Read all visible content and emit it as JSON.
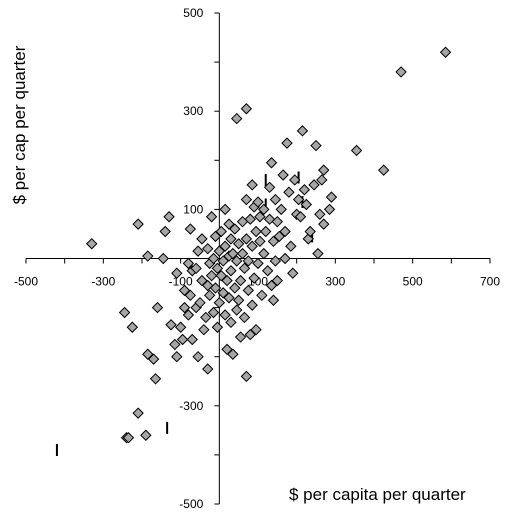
{
  "chart_data": {
    "type": "scatter",
    "title": "",
    "xlabel": "$ per capita per quarter",
    "ylabel": "$ per cap per quarter",
    "xlim": [
      -500,
      700
    ],
    "ylim": [
      -500,
      500
    ],
    "xticks": [
      -500,
      -300,
      -100,
      100,
      300,
      500,
      700
    ],
    "yticks": [
      -500,
      -300,
      100,
      300,
      500
    ],
    "grid": false,
    "legend": "none",
    "marker_color": "#a6a6a6",
    "marker_edge_color": "#000000",
    "points": [
      [
        -330,
        30
      ],
      [
        -245,
        -110
      ],
      [
        -240,
        -365
      ],
      [
        -235,
        -365
      ],
      [
        -225,
        -140
      ],
      [
        -210,
        70
      ],
      [
        -210,
        -315
      ],
      [
        -190,
        -360
      ],
      [
        -185,
        -195
      ],
      [
        -185,
        5
      ],
      [
        -170,
        -205
      ],
      [
        -165,
        -245
      ],
      [
        -160,
        -100
      ],
      [
        -145,
        0
      ],
      [
        -140,
        55
      ],
      [
        -130,
        85
      ],
      [
        -125,
        -135
      ],
      [
        -115,
        -175
      ],
      [
        -110,
        -200
      ],
      [
        -110,
        -30
      ],
      [
        -100,
        -140
      ],
      [
        -95,
        -165
      ],
      [
        -90,
        -65
      ],
      [
        -90,
        -100
      ],
      [
        -80,
        -10
      ],
      [
        -80,
        -115
      ],
      [
        -75,
        60
      ],
      [
        -75,
        -75
      ],
      [
        -70,
        -25
      ],
      [
        -70,
        -165
      ],
      [
        -60,
        -100
      ],
      [
        -60,
        -20
      ],
      [
        -55,
        15
      ],
      [
        -55,
        -200
      ],
      [
        -50,
        -90
      ],
      [
        -45,
        40
      ],
      [
        -45,
        -45
      ],
      [
        -40,
        -145
      ],
      [
        -35,
        -120
      ],
      [
        -30,
        -55
      ],
      [
        -30,
        20
      ],
      [
        -30,
        -225
      ],
      [
        -25,
        -10
      ],
      [
        -25,
        -75
      ],
      [
        -20,
        85
      ],
      [
        -20,
        -35
      ],
      [
        -15,
        0
      ],
      [
        -15,
        -110
      ],
      [
        -10,
        45
      ],
      [
        -10,
        -60
      ],
      [
        -5,
        -20
      ],
      [
        -5,
        -140
      ],
      [
        0,
        15
      ],
      [
        0,
        -90
      ],
      [
        5,
        55
      ],
      [
        5,
        -35
      ],
      [
        10,
        -70
      ],
      [
        10,
        -5
      ],
      [
        15,
        100
      ],
      [
        15,
        25
      ],
      [
        15,
        -115
      ],
      [
        20,
        -45
      ],
      [
        20,
        -185
      ],
      [
        25,
        70
      ],
      [
        25,
        5
      ],
      [
        25,
        -80
      ],
      [
        30,
        40
      ],
      [
        30,
        -25
      ],
      [
        30,
        -130
      ],
      [
        35,
        -195
      ],
      [
        35,
        10
      ],
      [
        40,
        60
      ],
      [
        40,
        -60
      ],
      [
        45,
        -5
      ],
      [
        45,
        -105
      ],
      [
        45,
        285
      ],
      [
        50,
        30
      ],
      [
        50,
        -85
      ],
      [
        55,
        -45
      ],
      [
        55,
        -160
      ],
      [
        60,
        75
      ],
      [
        60,
        10
      ],
      [
        65,
        -20
      ],
      [
        65,
        -120
      ],
      [
        70,
        120
      ],
      [
        70,
        -240
      ],
      [
        70,
        40
      ],
      [
        70,
        305
      ],
      [
        75,
        -65
      ],
      [
        75,
        -5
      ],
      [
        80,
        80
      ],
      [
        80,
        -155
      ],
      [
        85,
        25
      ],
      [
        85,
        150
      ],
      [
        85,
        -95
      ],
      [
        90,
        -40
      ],
      [
        90,
        105
      ],
      [
        95,
        55
      ],
      [
        95,
        -145
      ],
      [
        100,
        115
      ],
      [
        100,
        -10
      ],
      [
        105,
        35
      ],
      [
        105,
        85
      ],
      [
        110,
        -75
      ],
      [
        115,
        100
      ],
      [
        115,
        10
      ],
      [
        120,
        55
      ],
      [
        125,
        -25
      ],
      [
        130,
        80
      ],
      [
        130,
        145
      ],
      [
        135,
        -55
      ],
      [
        135,
        195
      ],
      [
        140,
        35
      ],
      [
        140,
        -85
      ],
      [
        145,
        120
      ],
      [
        145,
        -5
      ],
      [
        150,
        75
      ],
      [
        150,
        -45
      ],
      [
        155,
        45
      ],
      [
        160,
        100
      ],
      [
        165,
        170
      ],
      [
        170,
        0
      ],
      [
        170,
        55
      ],
      [
        175,
        235
      ],
      [
        180,
        135
      ],
      [
        185,
        25
      ],
      [
        190,
        -30
      ],
      [
        195,
        160
      ],
      [
        200,
        90
      ],
      [
        205,
        120
      ],
      [
        210,
        85
      ],
      [
        215,
        260
      ],
      [
        220,
        140
      ],
      [
        225,
        110
      ],
      [
        230,
        40
      ],
      [
        235,
        55
      ],
      [
        245,
        150
      ],
      [
        250,
        230
      ],
      [
        255,
        10
      ],
      [
        260,
        90
      ],
      [
        265,
        160
      ],
      [
        270,
        70
      ],
      [
        270,
        180
      ],
      [
        290,
        125
      ],
      [
        285,
        100
      ],
      [
        355,
        220
      ],
      [
        425,
        180
      ],
      [
        470,
        380
      ],
      [
        585,
        420
      ]
    ],
    "dash_marks": [
      [
        -420,
        -390
      ],
      [
        -135,
        -345
      ],
      [
        120,
        160
      ],
      [
        120,
        110
      ],
      [
        205,
        165
      ],
      [
        215,
        115
      ],
      [
        240,
        45
      ]
    ]
  }
}
